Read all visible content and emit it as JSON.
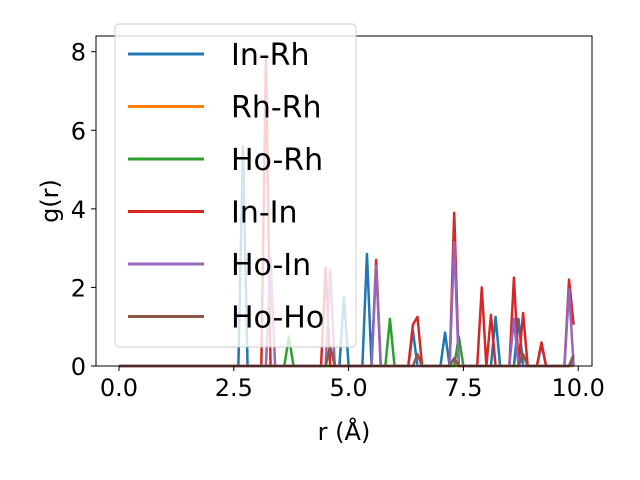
{
  "chart_data": {
    "type": "line",
    "xlabel": "r (Å)",
    "ylabel": "g(r)",
    "xlim": [
      -0.5,
      10.3
    ],
    "ylim": [
      0,
      8.4
    ],
    "xticks": [
      "0.0",
      "2.5",
      "5.0",
      "7.5",
      "10.0"
    ],
    "yticks": [
      "0",
      "2",
      "4",
      "6",
      "8"
    ],
    "grid": false,
    "legend_position": "upper-left",
    "series": [
      {
        "name": "In-Rh",
        "color": "#1f77b4",
        "points": [
          [
            0,
            0
          ],
          [
            2.6,
            0
          ],
          [
            2.7,
            5.6
          ],
          [
            2.8,
            0
          ],
          [
            4.8,
            0
          ],
          [
            4.9,
            1.75
          ],
          [
            5.0,
            0
          ],
          [
            5.3,
            0
          ],
          [
            5.4,
            2.85
          ],
          [
            5.5,
            0
          ],
          [
            6.3,
            0
          ],
          [
            6.4,
            0.9
          ],
          [
            6.5,
            0
          ],
          [
            7.0,
            0
          ],
          [
            7.1,
            0.85
          ],
          [
            7.2,
            0
          ],
          [
            8.1,
            0
          ],
          [
            8.2,
            1.25
          ],
          [
            8.3,
            0
          ],
          [
            8.6,
            0
          ],
          [
            8.7,
            1.2
          ],
          [
            8.8,
            0
          ],
          [
            9.1,
            0
          ],
          [
            9.2,
            0.55
          ],
          [
            9.3,
            0
          ],
          [
            9.8,
            0
          ],
          [
            9.9,
            0.3
          ]
        ]
      },
      {
        "name": "Rh-Rh",
        "color": "#ff7f0e",
        "points": [
          [
            0,
            0
          ],
          [
            9.9,
            0
          ]
        ]
      },
      {
        "name": "Ho-Rh",
        "color": "#2ca02c",
        "points": [
          [
            0,
            0
          ],
          [
            3.6,
            0
          ],
          [
            3.7,
            0.75
          ],
          [
            3.8,
            0
          ],
          [
            5.8,
            0
          ],
          [
            5.9,
            1.2
          ],
          [
            6.0,
            0
          ],
          [
            7.3,
            0
          ],
          [
            7.4,
            0.75
          ],
          [
            7.5,
            0
          ],
          [
            9.8,
            0
          ],
          [
            9.9,
            0.1
          ]
        ]
      },
      {
        "name": "In-In",
        "color": "#d62728",
        "points": [
          [
            0,
            0
          ],
          [
            3.1,
            0
          ],
          [
            3.2,
            7.9
          ],
          [
            3.3,
            0
          ],
          [
            4.4,
            0
          ],
          [
            4.5,
            2.5
          ],
          [
            4.6,
            0
          ],
          [
            5.5,
            0
          ],
          [
            5.6,
            2.7
          ],
          [
            5.7,
            0
          ],
          [
            6.3,
            0
          ],
          [
            6.4,
            1.05
          ],
          [
            6.5,
            1.25
          ],
          [
            6.6,
            0
          ],
          [
            7.2,
            0
          ],
          [
            7.3,
            3.9
          ],
          [
            7.4,
            0
          ],
          [
            7.8,
            0
          ],
          [
            7.9,
            2.0
          ],
          [
            8.0,
            0
          ],
          [
            8.1,
            1.3
          ],
          [
            8.2,
            0
          ],
          [
            8.5,
            0
          ],
          [
            8.6,
            2.25
          ],
          [
            8.7,
            0
          ],
          [
            8.8,
            1.35
          ],
          [
            8.9,
            0
          ],
          [
            9.1,
            0
          ],
          [
            9.2,
            0.6
          ],
          [
            9.3,
            0
          ],
          [
            9.7,
            0
          ],
          [
            9.8,
            2.2
          ],
          [
            9.9,
            1.05
          ]
        ]
      },
      {
        "name": "Ho-In",
        "color": "#9467bd",
        "points": [
          [
            0,
            0
          ],
          [
            3.2,
            0
          ],
          [
            3.3,
            2.75
          ],
          [
            3.4,
            0
          ],
          [
            4.5,
            0
          ],
          [
            4.6,
            2.45
          ],
          [
            4.7,
            0
          ],
          [
            5.5,
            0
          ],
          [
            5.6,
            2.55
          ],
          [
            5.7,
            0
          ],
          [
            7.2,
            0
          ],
          [
            7.3,
            3.15
          ],
          [
            7.4,
            0
          ],
          [
            8.5,
            0
          ],
          [
            8.6,
            1.2
          ],
          [
            8.7,
            0
          ],
          [
            9.7,
            0
          ],
          [
            9.8,
            1.95
          ],
          [
            9.9,
            0
          ]
        ]
      },
      {
        "name": "Ho-Ho",
        "color": "#8c564b",
        "points": [
          [
            0,
            0
          ],
          [
            4.5,
            0
          ],
          [
            4.6,
            0.5
          ],
          [
            4.7,
            0
          ],
          [
            6.4,
            0
          ],
          [
            6.5,
            0.3
          ],
          [
            6.6,
            0
          ],
          [
            7.2,
            0
          ],
          [
            7.3,
            0.2
          ],
          [
            7.4,
            0
          ],
          [
            8.7,
            0
          ],
          [
            8.8,
            0.3
          ],
          [
            8.9,
            0
          ],
          [
            9.8,
            0
          ],
          [
            9.9,
            0.25
          ]
        ]
      }
    ]
  }
}
